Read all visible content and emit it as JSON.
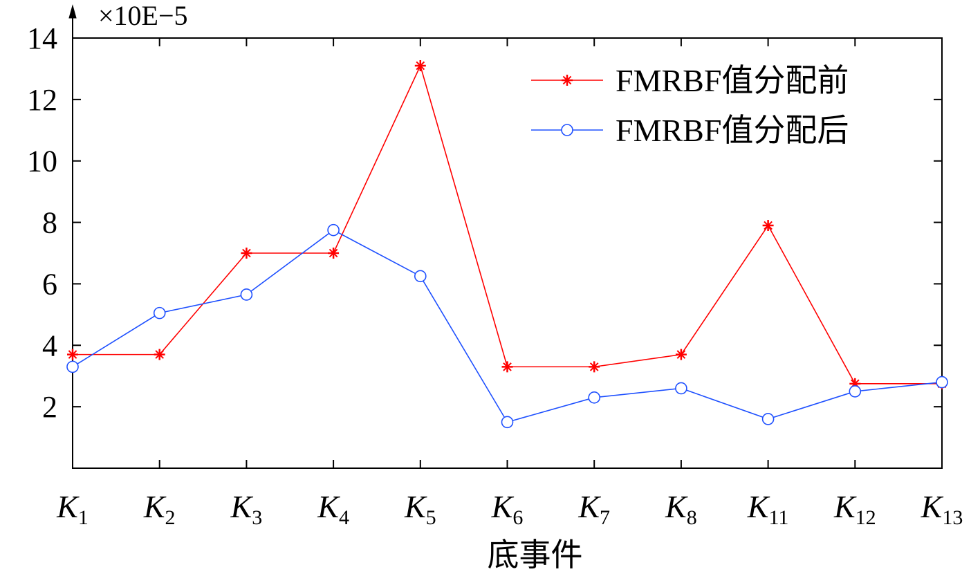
{
  "chart_data": {
    "type": "line",
    "categories": [
      {
        "main": "K",
        "sub": "1"
      },
      {
        "main": "K",
        "sub": "2"
      },
      {
        "main": "K",
        "sub": "3"
      },
      {
        "main": "K",
        "sub": "4"
      },
      {
        "main": "K",
        "sub": "5"
      },
      {
        "main": "K",
        "sub": "6"
      },
      {
        "main": "K",
        "sub": "7"
      },
      {
        "main": "K",
        "sub": "8"
      },
      {
        "main": "K",
        "sub": "11"
      },
      {
        "main": "K",
        "sub": "12"
      },
      {
        "main": "K",
        "sub": "13"
      }
    ],
    "series": [
      {
        "name": "FMRBF值分配前",
        "color": "#ff0000",
        "marker": "star",
        "values": [
          3.7,
          3.7,
          7.0,
          7.0,
          13.1,
          3.3,
          3.3,
          3.7,
          7.9,
          2.75,
          2.75
        ]
      },
      {
        "name": "FMRBF值分配后",
        "color": "#1e50ff",
        "marker": "circle",
        "values": [
          3.3,
          5.05,
          5.65,
          7.75,
          6.25,
          1.5,
          2.3,
          2.6,
          1.6,
          2.5,
          2.8
        ]
      }
    ],
    "xlabel": "底事件",
    "ylabel": "",
    "ylim": [
      0,
      14
    ],
    "yticks": [
      2,
      4,
      6,
      8,
      10,
      12,
      14
    ],
    "y_multiplier": "×10E−5",
    "grid": false,
    "legend_position": "top-right"
  }
}
